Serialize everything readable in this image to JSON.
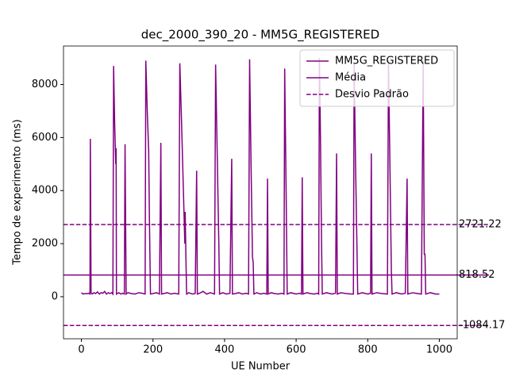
{
  "chart_data": {
    "type": "line",
    "title": "dec_2000_390_20 - MM5G_REGISTERED",
    "xlabel": "UE Number",
    "ylabel": "Tempo de experimento (ms)",
    "xlim": [
      -50,
      1050
    ],
    "xticks": [
      0,
      200,
      400,
      600,
      800,
      1000
    ],
    "ylim": [
      -1586,
      9450
    ],
    "yticks": [
      0,
      2000,
      4000,
      6000,
      8000
    ],
    "legend": "upper right",
    "series": [
      {
        "name": "MM5G_REGISTERED",
        "color": "#800080",
        "x": [
          0,
          5,
          10,
          15,
          20,
          24,
          25,
          27,
          30,
          35,
          40,
          45,
          50,
          55,
          60,
          65,
          70,
          75,
          80,
          85,
          88,
          90,
          93,
          96,
          97,
          98,
          100,
          105,
          110,
          115,
          120,
          122,
          124,
          125,
          130,
          140,
          150,
          160,
          170,
          178,
          180,
          184,
          188,
          190,
          193,
          200,
          210,
          218,
          222,
          224,
          230,
          240,
          250,
          260,
          272,
          275,
          280,
          285,
          289,
          290,
          292,
          294,
          300,
          310,
          318,
          322,
          324,
          330,
          340,
          350,
          360,
          372,
          375,
          380,
          384,
          386,
          395,
          405,
          415,
          420,
          422,
          430,
          440,
          450,
          460,
          467,
          470,
          474,
          478,
          480,
          482,
          490,
          500,
          510,
          518,
          520,
          522,
          530,
          540,
          550,
          560,
          566,
          568,
          572,
          575,
          585,
          600,
          610,
          615,
          617,
          619,
          630,
          640,
          650,
          660,
          663,
          665,
          668,
          671,
          673,
          685,
          700,
          710,
          713,
          715,
          725,
          740,
          755,
          760,
          762,
          766,
          770,
          772,
          785,
          800,
          808,
          810,
          812,
          825,
          840,
          855,
          858,
          862,
          866,
          868,
          880,
          895,
          905,
          910,
          912,
          925,
          940,
          950,
          955,
          958,
          960,
          962,
          975,
          990,
          1000
        ],
        "values": [
          150,
          100,
          120,
          110,
          130,
          100,
          5950,
          150,
          100,
          150,
          120,
          180,
          100,
          150,
          130,
          200,
          100,
          150,
          120,
          150,
          100,
          8700,
          6500,
          5000,
          5600,
          100,
          120,
          150,
          100,
          130,
          100,
          5750,
          2000,
          100,
          150,
          120,
          100,
          150,
          130,
          100,
          8900,
          7000,
          5500,
          3000,
          100,
          120,
          150,
          100,
          5800,
          100,
          120,
          150,
          100,
          130,
          100,
          8800,
          6500,
          4000,
          2000,
          3200,
          1500,
          100,
          150,
          100,
          120,
          4750,
          100,
          130,
          200,
          100,
          150,
          100,
          8750,
          5000,
          2000,
          100,
          150,
          100,
          130,
          5200,
          100,
          120,
          150,
          100,
          130,
          100,
          8950,
          5000,
          1500,
          1300,
          100,
          150,
          100,
          130,
          100,
          4450,
          100,
          150,
          120,
          100,
          130,
          100,
          8600,
          4000,
          100,
          150,
          100,
          130,
          100,
          4500,
          100,
          150,
          120,
          100,
          130,
          100,
          9000,
          6000,
          2000,
          100,
          150,
          100,
          130,
          5400,
          100,
          150,
          120,
          100,
          100,
          8800,
          5000,
          1800,
          100,
          150,
          100,
          130,
          5400,
          100,
          150,
          120,
          100,
          8900,
          5000,
          1000,
          100,
          150,
          100,
          130,
          4450,
          100,
          150,
          120,
          100,
          8900,
          1600,
          1600,
          100,
          150,
          100,
          100
        ]
      }
    ],
    "hlines": [
      {
        "name": "Média",
        "color": "#800080",
        "style": "solid",
        "values": [
          818.52
        ]
      },
      {
        "name": "Desvio Padrão",
        "color": "#800080",
        "style": "dashed",
        "values": [
          2721.22,
          -1084.17
        ]
      }
    ]
  }
}
